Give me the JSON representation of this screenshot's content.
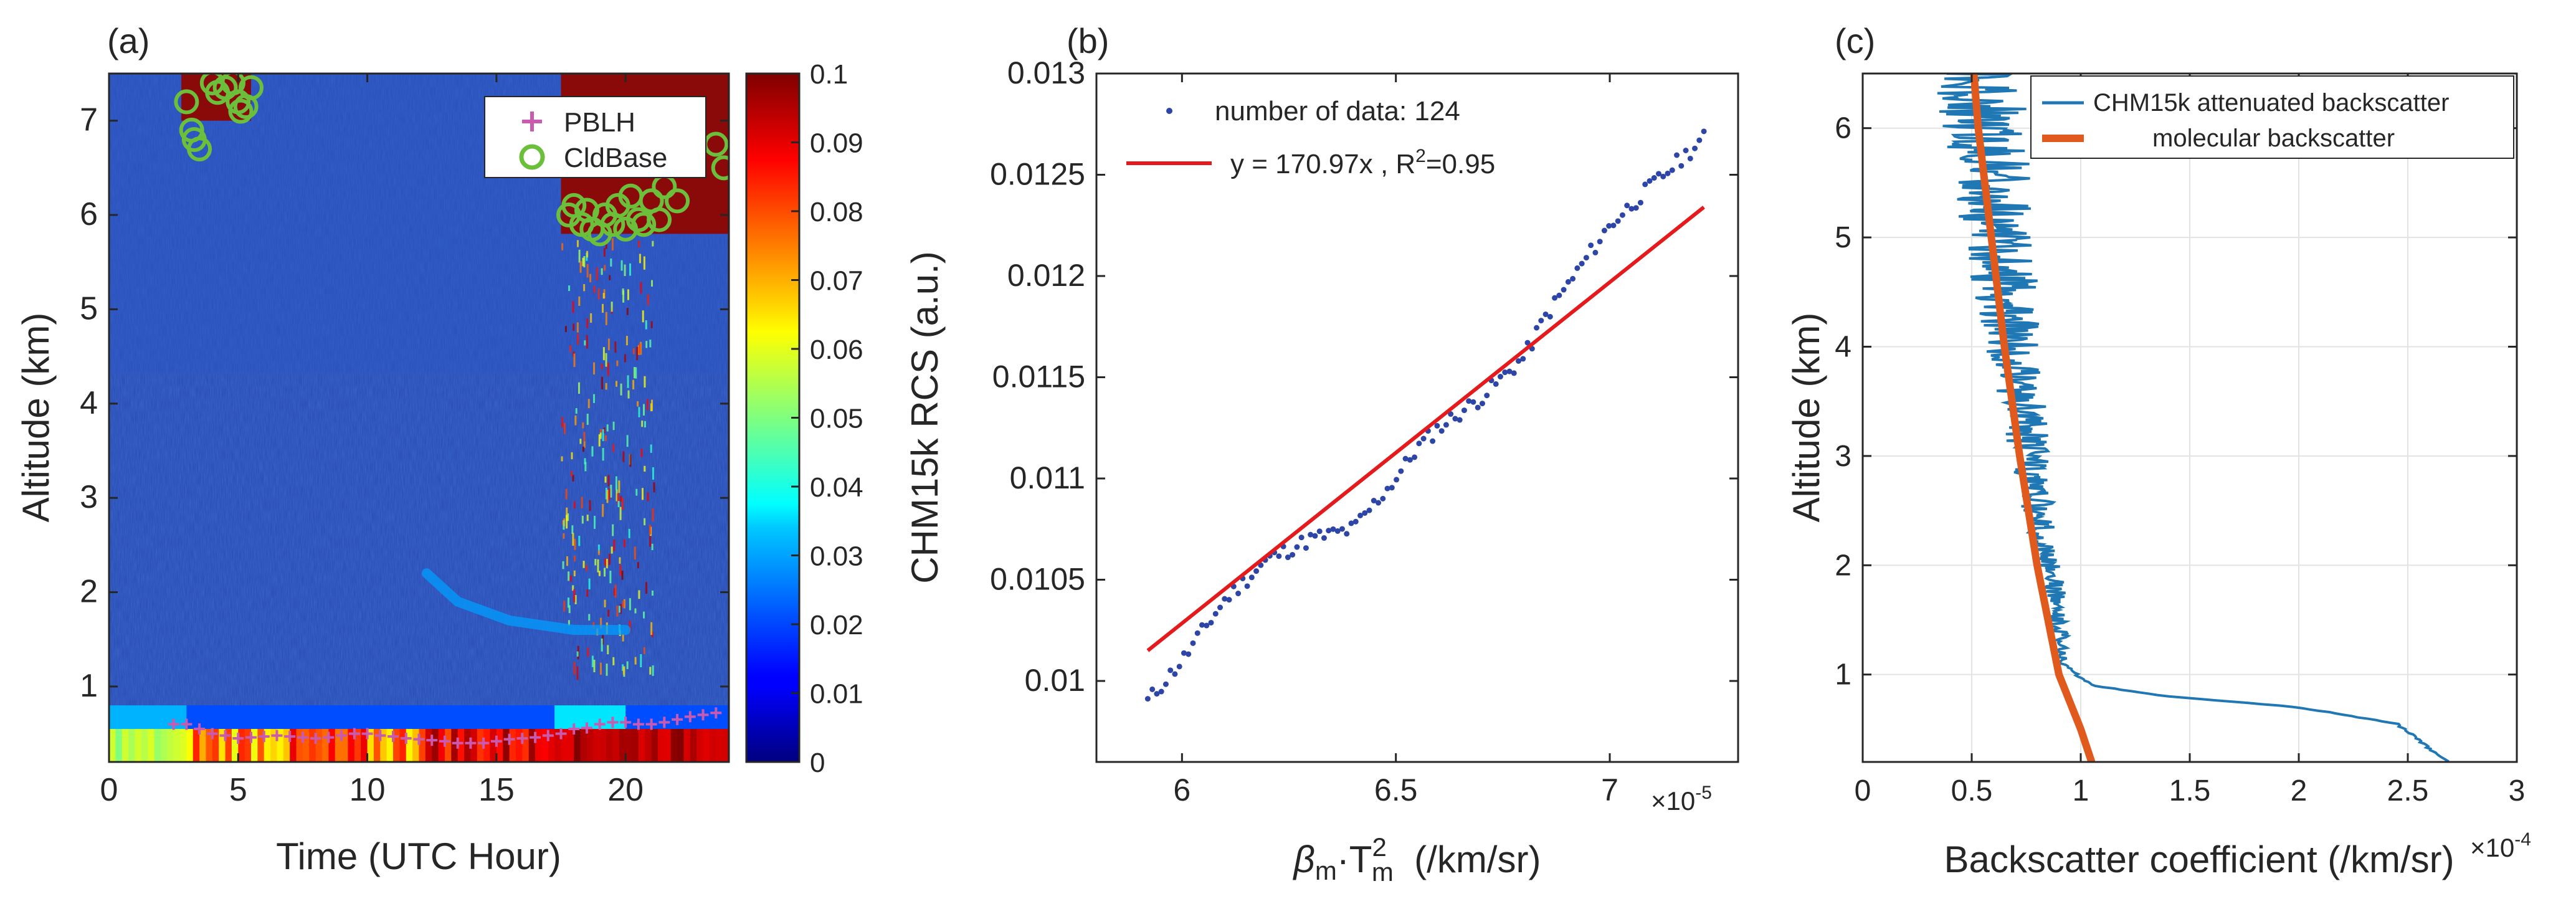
{
  "figure": {
    "background": "#ffffff",
    "axis_color": "#262626",
    "grid_color": "#e3e3e3"
  },
  "chart_data": [
    {
      "panel_label": "(a)",
      "type": "heatmap",
      "xlabel": "Time (UTC Hour)",
      "ylabel": "Altitude (km)",
      "xlim": [
        0,
        24
      ],
      "ylim": [
        0.2,
        7.5
      ],
      "xticks": [
        0,
        5,
        10,
        15,
        20
      ],
      "xtick_labels": [
        "0",
        "5",
        "10",
        "15",
        "20"
      ],
      "yticks": [
        1,
        2,
        3,
        4,
        5,
        6,
        7
      ],
      "ytick_labels": [
        "1",
        "2",
        "3",
        "4",
        "5",
        "6",
        "7"
      ],
      "colorbar": {
        "range": [
          0,
          0.1
        ],
        "ticks": [
          0,
          0.01,
          0.02,
          0.03,
          0.04,
          0.05,
          0.06,
          0.07,
          0.08,
          0.09,
          0.1
        ],
        "tick_labels": [
          "0",
          "0.01",
          "0.02",
          "0.03",
          "0.04",
          "0.05",
          "0.06",
          "0.07",
          "0.08",
          "0.09",
          "0.1"
        ],
        "colormap": "jet"
      },
      "background_value": 0.012,
      "features": [
        {
          "name": "aerosol layer",
          "value": 0.028,
          "points": [
            [
              12.3,
              2.2
            ],
            [
              13.5,
              1.9
            ],
            [
              15.5,
              1.7
            ],
            [
              18,
              1.6
            ],
            [
              20,
              1.6
            ]
          ]
        },
        {
          "name": "near-surface aerosol",
          "value": 0.06,
          "altitude_top_km": 0.8
        },
        {
          "name": "clouds",
          "value": 0.1,
          "time_range": [
            17.5,
            24
          ],
          "altitude_range_km": [
            5.8,
            7.5
          ]
        }
      ],
      "legend": {
        "position": "top-right",
        "entries": [
          {
            "label": "PBLH",
            "marker": "+",
            "color": "#c85ab0"
          },
          {
            "label": "CldBase",
            "marker": "o",
            "color": "#6bbf3a"
          }
        ]
      },
      "series": [
        {
          "name": "PBLH",
          "x": [
            2.5,
            3,
            3.5,
            4,
            4.5,
            5,
            5.5,
            6,
            6.5,
            7,
            7.5,
            8,
            8.5,
            9,
            9.5,
            10,
            10.5,
            11,
            11.5,
            12,
            12.5,
            13,
            13.5,
            14,
            14.5,
            15,
            15.5,
            16,
            16.5,
            17,
            17.5,
            18,
            18.5,
            19,
            19.5,
            20,
            20.5,
            21,
            21.5,
            22,
            22.5,
            23,
            23.5
          ],
          "y": [
            0.6,
            0.6,
            0.55,
            0.5,
            0.48,
            0.45,
            0.46,
            0.47,
            0.48,
            0.47,
            0.46,
            0.45,
            0.46,
            0.48,
            0.5,
            0.5,
            0.48,
            0.47,
            0.45,
            0.44,
            0.43,
            0.42,
            0.4,
            0.4,
            0.4,
            0.42,
            0.44,
            0.45,
            0.46,
            0.48,
            0.5,
            0.55,
            0.56,
            0.6,
            0.62,
            0.62,
            0.6,
            0.6,
            0.62,
            0.65,
            0.68,
            0.7,
            0.72
          ]
        },
        {
          "name": "CldBase",
          "x": [
            3,
            3.2,
            3.3,
            3.5,
            4,
            4.2,
            4.5,
            4.8,
            5,
            5.1,
            5.3,
            5.5,
            17.8,
            18,
            18.3,
            18.5,
            18.7,
            19,
            19.2,
            19.5,
            19.7,
            20,
            20.2,
            20.5,
            20.7,
            21,
            21.3,
            21.5,
            22,
            23.5,
            23.8
          ],
          "y": [
            7.2,
            6.9,
            6.8,
            6.7,
            7.4,
            7.3,
            7.35,
            7.4,
            7.2,
            7.1,
            7.15,
            7.35,
            6.0,
            6.1,
            5.9,
            6.05,
            5.85,
            5.8,
            6.0,
            5.9,
            6.1,
            5.85,
            6.2,
            5.95,
            5.9,
            6.15,
            5.95,
            6.3,
            6.15,
            6.75,
            6.5
          ]
        }
      ]
    },
    {
      "panel_label": "(b)",
      "type": "scatter",
      "xlabel_parts": {
        "beta": "β",
        "beta_sub": "m",
        "dot": "·T",
        "t_sub": "m",
        "t_sup": "2",
        "units": "  (/km/sr)"
      },
      "ylabel": "CHM15k RCS (a.u.)",
      "xlim": [
        5.8,
        7.3
      ],
      "ylim": [
        0.0096,
        0.013
      ],
      "xticks": [
        6,
        6.5,
        7
      ],
      "xtick_labels": [
        "6",
        "6.5",
        "7"
      ],
      "x_exponent": "×10",
      "x_exponent_power": "-5",
      "yticks": [
        0.01,
        0.0105,
        0.011,
        0.0115,
        0.012,
        0.0125,
        0.013
      ],
      "ytick_labels": [
        "0.01",
        "0.0105",
        "0.011",
        "0.0115",
        "0.012",
        "0.0125",
        "0.013"
      ],
      "legend": {
        "position": "top-left",
        "entries": [
          {
            "label": "number of data: 124",
            "marker": "dot",
            "color": "#2e45a8"
          },
          {
            "label_main": "y = 170.97x , R",
            "label_sup": "2",
            "label_tail": "=0.95",
            "marker": "line",
            "color": "#e41a1c"
          }
        ]
      },
      "fit": {
        "slope": 170.97,
        "r2": 0.95,
        "x_range": [
          5.92,
          7.22
        ],
        "y_range": [
          0.01015,
          0.01234
        ]
      },
      "series": [
        {
          "name": "number of data: 124",
          "point_count": 124,
          "x_range": [
            5.92,
            7.22
          ],
          "y_anchor_points": [
            [
              5.92,
              0.0099
            ],
            [
              6.0,
              0.0101
            ],
            [
              6.1,
              0.0104
            ],
            [
              6.2,
              0.0106
            ],
            [
              6.3,
              0.0107
            ],
            [
              6.4,
              0.01075
            ],
            [
              6.5,
              0.011
            ],
            [
              6.55,
              0.01115
            ],
            [
              6.6,
              0.01125
            ],
            [
              6.7,
              0.0114
            ],
            [
              6.8,
              0.0116
            ],
            [
              6.85,
              0.0118
            ],
            [
              6.9,
              0.01195
            ],
            [
              7.0,
              0.01225
            ],
            [
              7.1,
              0.01245
            ],
            [
              7.22,
              0.01268
            ]
          ]
        }
      ]
    },
    {
      "panel_label": "(c)",
      "type": "line",
      "xlabel": "Backscatter coefficient (/km/sr)",
      "ylabel": "Altitude (km)",
      "xlim": [
        0,
        3
      ],
      "ylim": [
        0.2,
        6.5
      ],
      "xticks": [
        0,
        0.5,
        1,
        1.5,
        2,
        2.5,
        3
      ],
      "xtick_labels": [
        "0",
        "0.5",
        "1",
        "1.5",
        "2",
        "2.5",
        "3"
      ],
      "x_exponent": "×10",
      "x_exponent_power": "-4",
      "yticks": [
        1,
        2,
        3,
        4,
        5,
        6
      ],
      "ytick_labels": [
        "1",
        "2",
        "3",
        "4",
        "5",
        "6"
      ],
      "grid": true,
      "legend": {
        "position": "top-right",
        "entries": [
          {
            "label": "CHM15k attenuated backscatter",
            "color": "#1f77b4"
          },
          {
            "label": "molecular backscatter",
            "color": "#e05a1e"
          }
        ]
      },
      "series": [
        {
          "name": "CHM15k attenuated backscatter",
          "y": [
            0.2,
            0.4,
            0.55,
            0.7,
            0.8,
            0.9,
            1.0,
            1.1,
            1.4,
            1.8,
            2.2,
            2.6,
            3.0,
            3.4,
            3.8,
            4.2,
            4.6,
            5.0,
            5.4,
            5.8,
            6.2,
            6.5
          ],
          "x": [
            2.68,
            2.55,
            2.45,
            2.0,
            1.4,
            1.05,
            0.98,
            0.92,
            0.9,
            0.88,
            0.84,
            0.8,
            0.77,
            0.74,
            0.7,
            0.68,
            0.65,
            0.62,
            0.6,
            0.58,
            0.55,
            0.52
          ]
        },
        {
          "name": "molecular backscatter",
          "y": [
            0.2,
            0.5,
            1.0,
            2.0,
            3.0,
            4.0,
            5.0,
            6.0,
            6.5
          ],
          "x": [
            1.05,
            1.0,
            0.9,
            0.8,
            0.72,
            0.65,
            0.59,
            0.53,
            0.51
          ]
        }
      ]
    }
  ]
}
